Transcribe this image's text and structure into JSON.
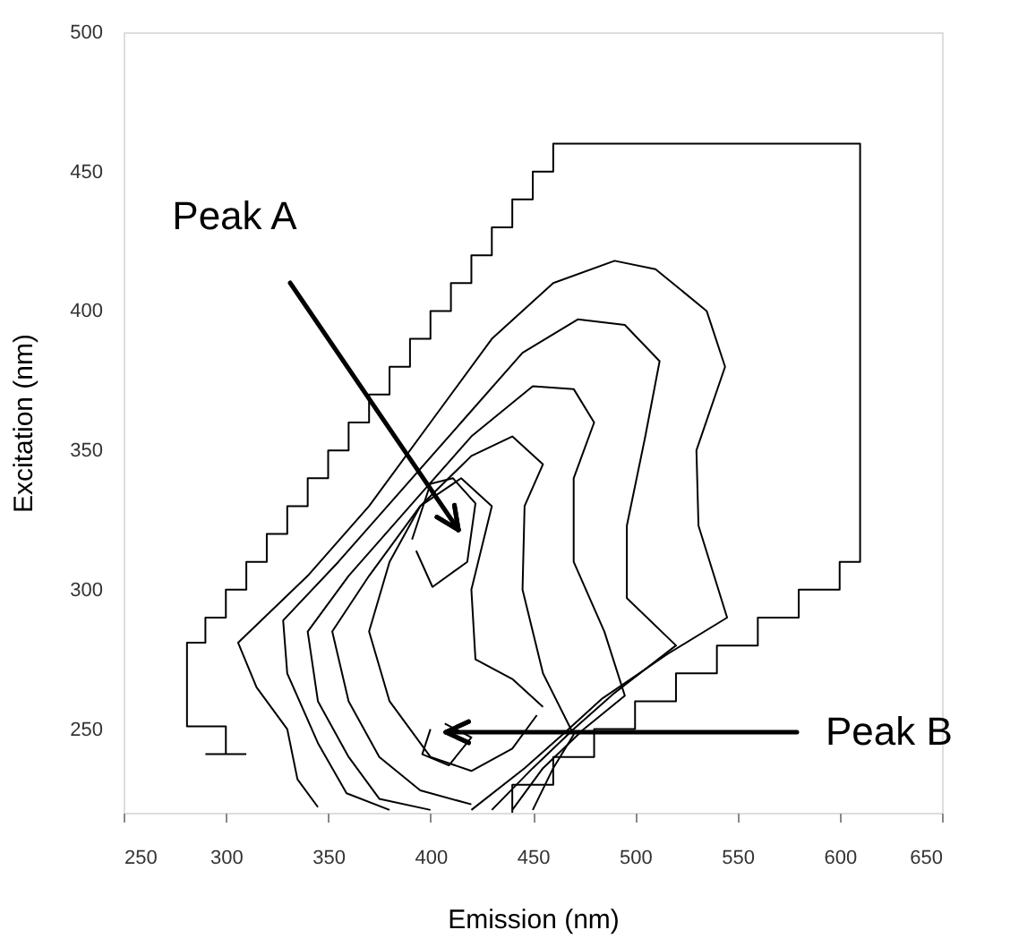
{
  "chart_data": {
    "type": "line",
    "xlabel": "Emission (nm)",
    "ylabel": "Excitation (nm)",
    "xlim": [
      250,
      650
    ],
    "ylim": [
      220,
      500
    ],
    "xticks": [
      250,
      300,
      350,
      400,
      450,
      500,
      550,
      600,
      650
    ],
    "yticks": [
      250,
      300,
      350,
      400,
      450,
      500
    ],
    "grid": false,
    "line_style": "solid",
    "annotations": [
      "Peak A",
      "Peak B"
    ],
    "series": [
      {
        "type": "line",
        "color": "#000000",
        "x": [
          300,
          300,
          281,
          281,
          290,
          290,
          300,
          300,
          310,
          310,
          320,
          320,
          330,
          330,
          340,
          340,
          350,
          350,
          360,
          360,
          370,
          370,
          380,
          380,
          390,
          390,
          400,
          400,
          410,
          410,
          420,
          420,
          430,
          430,
          440,
          440,
          450,
          450,
          460,
          460,
          610,
          610,
          600,
          600,
          580,
          580,
          560,
          560,
          540,
          540,
          520,
          520,
          500,
          500,
          480,
          480,
          460,
          460,
          440,
          440
        ],
        "values": [
          241,
          251,
          251,
          281,
          281,
          290,
          290,
          300,
          300,
          310,
          310,
          320,
          320,
          330,
          330,
          340,
          340,
          350,
          350,
          360,
          360,
          370,
          370,
          380,
          380,
          390,
          390,
          400,
          400,
          410,
          410,
          420,
          420,
          430,
          430,
          440,
          440,
          450,
          450,
          460,
          460,
          310,
          310,
          300,
          300,
          290,
          290,
          280,
          280,
          270,
          270,
          260,
          260,
          250,
          250,
          240,
          240,
          230,
          230,
          220
        ]
      },
      {
        "type": "line",
        "color": "#000000",
        "x": [
          290,
          310
        ],
        "values": [
          241,
          241
        ]
      },
      {
        "type": "line",
        "color": "#000000",
        "x": [
          420,
          446,
          466,
          484,
          516,
          545,
          531,
          530,
          544,
          535,
          510,
          490,
          460,
          430,
          400,
          370,
          340,
          306,
          315,
          330,
          335,
          345
        ],
        "values": [
          221,
          236,
          249,
          261,
          277,
          290,
          323,
          350,
          380,
          400,
          415,
          418,
          410,
          390,
          360,
          330,
          305,
          281,
          265,
          250,
          232,
          222
        ]
      },
      {
        "type": "line",
        "color": "#000000",
        "x": [
          430,
          450,
          470,
          490,
          520,
          496,
          496,
          505,
          512,
          495,
          472,
          445,
          415,
          385,
          355,
          328,
          330,
          345,
          359,
          380
        ],
        "values": [
          221,
          236,
          250,
          263,
          280,
          297,
          323,
          355,
          382,
          395,
          397,
          385,
          360,
          335,
          310,
          289,
          270,
          245,
          227,
          221
        ]
      },
      {
        "type": "line",
        "color": "#000000",
        "x": [
          440,
          455,
          475,
          495,
          485,
          470,
          470,
          480,
          470,
          450,
          420,
          390,
          360,
          340,
          345,
          360,
          375,
          400
        ],
        "values": [
          221,
          236,
          250,
          262,
          285,
          310,
          340,
          360,
          372,
          373,
          355,
          330,
          305,
          285,
          260,
          240,
          225,
          221
        ]
      },
      {
        "type": "line",
        "color": "#000000",
        "x": [
          450,
          460,
          470,
          455,
          445,
          446,
          455,
          440,
          420,
          395,
          370,
          352,
          360,
          375,
          395,
          420
        ],
        "values": [
          221,
          236,
          248,
          270,
          300,
          330,
          345,
          355,
          348,
          330,
          305,
          285,
          260,
          240,
          228,
          223
        ]
      },
      {
        "type": "line",
        "color": "#000000",
        "x": [
          455,
          440,
          422,
          420,
          430,
          415,
          395,
          380,
          370,
          380,
          400,
          420,
          440,
          452
        ],
        "values": [
          258,
          268,
          275,
          300,
          330,
          340,
          330,
          310,
          285,
          260,
          240,
          235,
          243,
          255
        ]
      },
      {
        "type": "line",
        "color": "#000000",
        "x": [
          391,
          400,
          411,
          422,
          418,
          401,
          393
        ],
        "values": [
          318,
          338,
          340,
          331,
          310,
          301,
          314
        ]
      },
      {
        "type": "line",
        "color": "#000000",
        "x": [
          407,
          420,
          409,
          396,
          400
        ],
        "values": [
          252,
          247,
          237,
          241,
          250
        ]
      }
    ]
  }
}
